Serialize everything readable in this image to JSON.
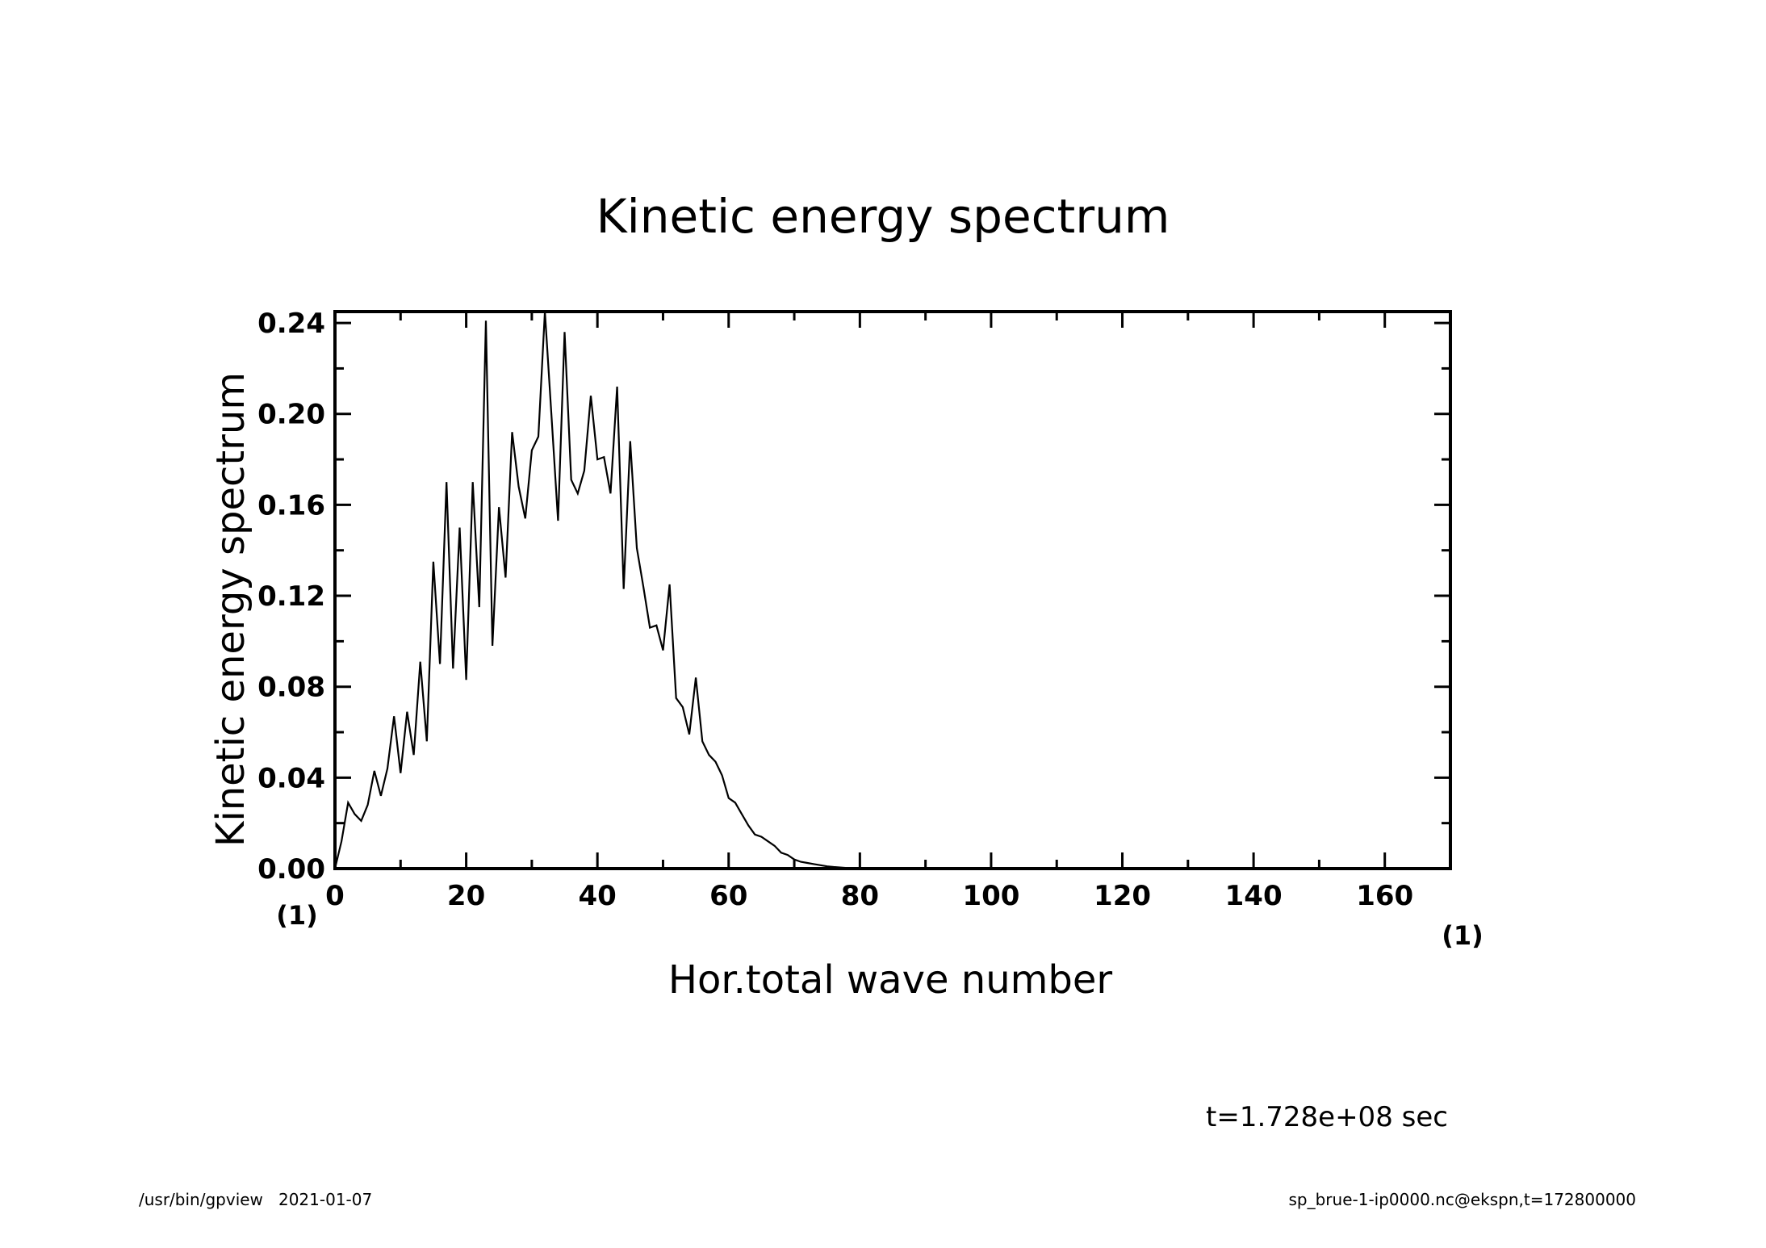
{
  "chart_data": {
    "type": "line",
    "title": "Kinetic energy spectrum",
    "xlabel": "Hor.total wave number",
    "ylabel": "Kinetic energy spectrum",
    "x_unit": "(1)",
    "y_unit": "(1)",
    "xlim": [
      0,
      170
    ],
    "ylim": [
      0,
      0.24
    ],
    "x_ticks": [
      "0",
      "20",
      "40",
      "60",
      "80",
      "100",
      "120",
      "140",
      "160"
    ],
    "y_ticks": [
      "0.00",
      "0.04",
      "0.08",
      "0.12",
      "0.16",
      "0.20",
      "0.24"
    ],
    "grid": false,
    "series": [
      {
        "x": [
          0,
          1,
          2,
          3,
          4,
          5,
          6,
          7,
          8,
          9,
          10,
          11,
          12,
          13,
          14,
          15,
          16,
          17,
          18,
          19,
          20,
          21,
          22,
          23,
          24,
          25,
          26,
          27,
          28,
          29,
          30,
          31,
          32,
          33,
          34,
          35,
          36,
          37,
          38,
          39,
          40,
          41,
          42,
          43,
          44,
          45,
          46,
          47,
          48,
          49,
          50,
          51,
          52,
          53,
          54,
          55,
          56,
          57,
          58,
          59,
          60,
          61,
          62,
          63,
          64,
          65,
          66,
          67,
          68,
          69,
          70,
          71,
          72,
          73,
          74,
          75,
          76,
          77,
          78,
          79,
          80
        ],
        "y": [
          0.0,
          0.012,
          0.029,
          0.024,
          0.021,
          0.028,
          0.043,
          0.032,
          0.044,
          0.067,
          0.042,
          0.069,
          0.05,
          0.091,
          0.056,
          0.135,
          0.09,
          0.17,
          0.088,
          0.15,
          0.083,
          0.17,
          0.115,
          0.241,
          0.098,
          0.159,
          0.128,
          0.192,
          0.168,
          0.154,
          0.184,
          0.19,
          0.245,
          0.199,
          0.153,
          0.236,
          0.171,
          0.165,
          0.175,
          0.208,
          0.18,
          0.181,
          0.165,
          0.212,
          0.123,
          0.188,
          0.141,
          0.124,
          0.106,
          0.107,
          0.096,
          0.125,
          0.075,
          0.071,
          0.059,
          0.084,
          0.056,
          0.05,
          0.047,
          0.041,
          0.031,
          0.029,
          0.024,
          0.019,
          0.015,
          0.014,
          0.012,
          0.01,
          0.007,
          0.006,
          0.004,
          0.003,
          0.0025,
          0.002,
          0.0015,
          0.001,
          0.0007,
          0.0005,
          0.0003,
          0.0001,
          0.0
        ]
      }
    ]
  },
  "annotation": "t=1.728e+08 sec",
  "footer": {
    "left": "/usr/bin/gpview   2021-01-07",
    "right": "sp_brue-1-ip0000.nc@ekspn,t=172800000"
  }
}
